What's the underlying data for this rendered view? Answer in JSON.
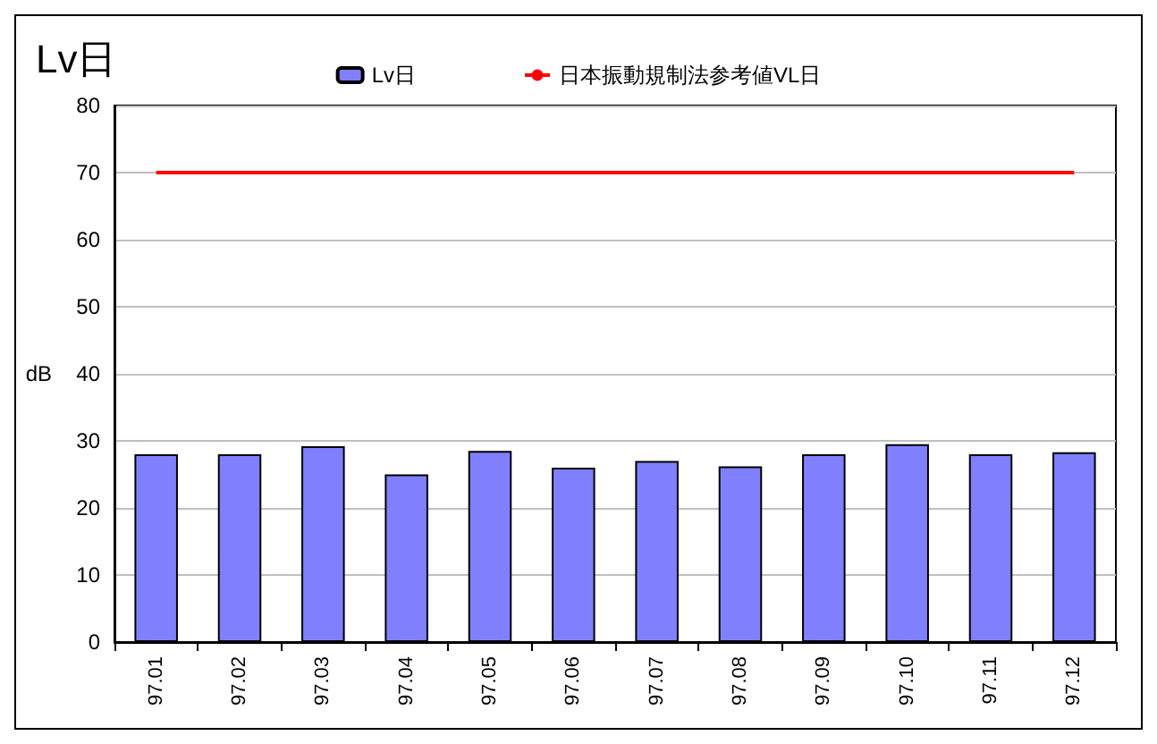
{
  "chart_data": {
    "type": "bar",
    "title": "Lv日",
    "ylabel": "dB",
    "categories": [
      "97.01",
      "97.02",
      "97.03",
      "97.04",
      "97.05",
      "97.06",
      "97.07",
      "97.08",
      "97.09",
      "97.10",
      "97.11",
      "97.12"
    ],
    "series": [
      {
        "name": "Lv日",
        "color": "#8080ff",
        "values": [
          28,
          28,
          29.2,
          25,
          28.5,
          26,
          27,
          26.2,
          28,
          29.5,
          28,
          28.3
        ]
      },
      {
        "name": "日本振動規制法参考値VL日",
        "type": "line",
        "color": "#ff0000",
        "values": [
          70,
          70,
          70,
          70,
          70,
          70,
          70,
          70,
          70,
          70,
          70,
          70
        ]
      }
    ],
    "ylim": [
      0,
      80
    ],
    "yticks": [
      0,
      10,
      20,
      30,
      40,
      50,
      60,
      70,
      80
    ],
    "grid": "y",
    "legend": "top"
  }
}
